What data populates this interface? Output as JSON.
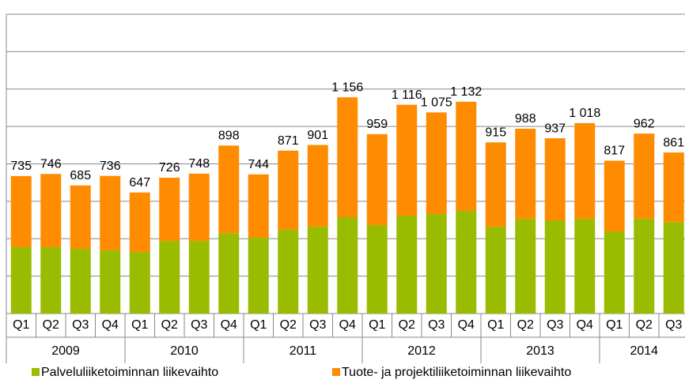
{
  "chart_data": {
    "type": "stacked_bar",
    "categories": [
      "Q1",
      "Q2",
      "Q3",
      "Q4",
      "Q1",
      "Q2",
      "Q3",
      "Q4",
      "Q1",
      "Q2",
      "Q3",
      "Q4",
      "Q1",
      "Q2",
      "Q3",
      "Q4",
      "Q1",
      "Q2",
      "Q3",
      "Q4",
      "Q1",
      "Q2",
      "Q3"
    ],
    "groups": [
      "2009",
      "2010",
      "2011",
      "2012",
      "2013",
      "2014"
    ],
    "series": [
      {
        "name": "Palveluliiketoiminnan liikevaihto",
        "color": "#99bb00",
        "values": [
          355,
          355,
          346,
          338,
          329,
          388,
          388,
          430,
          405,
          447,
          464,
          515,
          473,
          523,
          532,
          549,
          464,
          506,
          498,
          506,
          439,
          506,
          489
        ]
      },
      {
        "name": "Tuote- ja projektiliiketoiminnan liikevaihto",
        "color": "#ff8c00",
        "values": [
          380,
          391,
          339,
          398,
          318,
          338,
          360,
          468,
          339,
          424,
          437,
          641,
          486,
          593,
          543,
          583,
          451,
          482,
          439,
          512,
          378,
          456,
          372
        ]
      }
    ],
    "totals": [
      735,
      746,
      685,
      736,
      647,
      726,
      748,
      898,
      744,
      871,
      901,
      1156,
      959,
      1116,
      1075,
      1132,
      915,
      988,
      937,
      1018,
      817,
      962,
      861
    ],
    "value_labels": [
      "735",
      "746",
      "685",
      "736",
      "647",
      "726",
      "748",
      "898",
      "744",
      "871",
      "901",
      "1 156",
      "959",
      "1 116",
      "1 075",
      "1 132",
      "915",
      "988",
      "937",
      "1 018",
      "817",
      "962",
      "861"
    ],
    "ylim": [
      0,
      1600
    ],
    "yticks": [
      0,
      200,
      400,
      600,
      800,
      1000,
      1200,
      1400,
      1600
    ],
    "grid": true
  }
}
